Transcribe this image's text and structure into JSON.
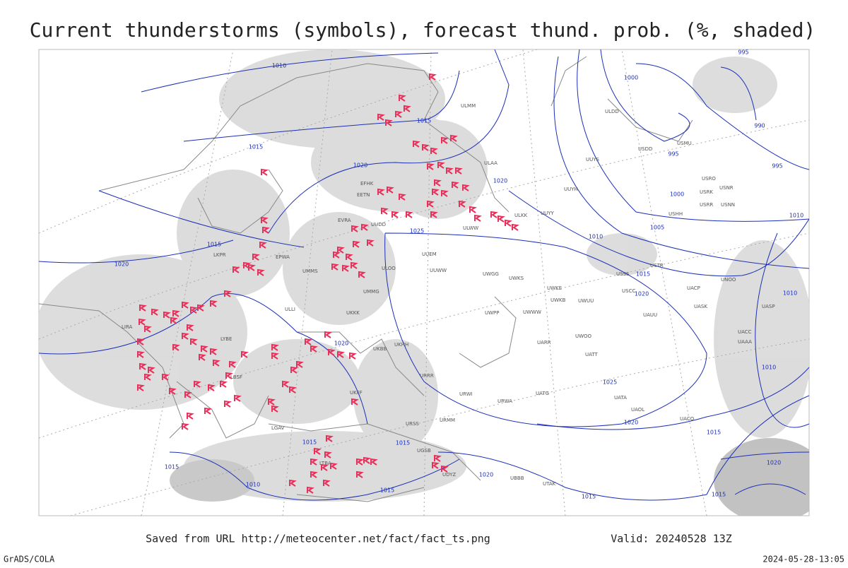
{
  "header": {
    "title": "Current thunderstorms (symbols), forecast thund. prob. (%, shaded)"
  },
  "footer": {
    "url": "Saved from URL http://meteocenter.net/fact/fact_ts.png",
    "valid": "Valid: 20240528 13Z",
    "left": "GrADS/COLA",
    "right": "2024-05-28-13:05"
  },
  "isobar_labels": [
    "1010",
    "1015",
    "1015",
    "1020",
    "1020",
    "1015",
    "1020",
    "1025",
    "1000",
    "995",
    "990",
    "995",
    "1000",
    "1005",
    "1010",
    "1010",
    "1015",
    "1020",
    "1020",
    "1025",
    "1020",
    "1015",
    "1015",
    "1015",
    "1015",
    "1010",
    "1015",
    "1020",
    "1015",
    "1015",
    "1010",
    "1010",
    "1020",
    "995"
  ],
  "stations": [
    "ULMM",
    "ULAA",
    "UUYH",
    "UUYS",
    "ULDD",
    "USDD",
    "USMU",
    "USRO",
    "USRK",
    "USNR",
    "USRR",
    "USNN",
    "USHH",
    "UUYY",
    "ULKK",
    "ULWW",
    "UUEM",
    "UUWW",
    "UWGG",
    "UWKS",
    "UWKE",
    "UWKB",
    "UWUU",
    "ULLI",
    "UMMG",
    "USSS",
    "USCC",
    "USTR",
    "UACP",
    "UNOO",
    "UASK",
    "UASP",
    "UACC",
    "UAAA",
    "UAUU",
    "UWWW",
    "UWPP",
    "UWOO",
    "UARR",
    "UATT",
    "URWI",
    "URWA",
    "UATG",
    "UATA",
    "UAOL",
    "UACO",
    "UTAK",
    "UBBB",
    "URMM",
    "URSS",
    "UGSB",
    "UDYZ",
    "UKFF",
    "UKKK",
    "UKBB",
    "UMMS",
    "EVRA",
    "EETN",
    "EFHK",
    "EPWA",
    "LKPR",
    "LIRA",
    "LYBE",
    "LBSF",
    "LGAV",
    "LTBA",
    "UUDD",
    "ULOO",
    "UKHH",
    "URRR"
  ]
}
